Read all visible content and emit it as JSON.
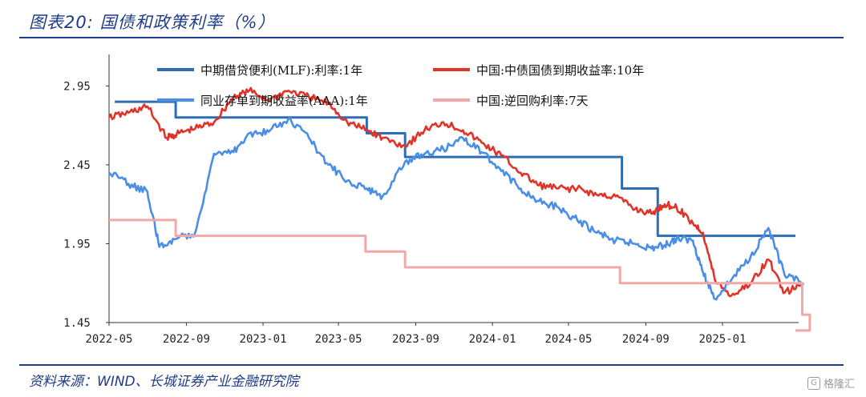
{
  "title": "图表20:  国债和政策利率（%）",
  "source": "资料来源：WIND、长城证券产业金融研究院",
  "watermark": "格隆汇",
  "chart_data": {
    "type": "line",
    "title": "",
    "xlabel": "",
    "ylabel": "",
    "x_ticks": [
      "2022-05",
      "2022-09",
      "2023-01",
      "2023-05",
      "2023-09",
      "2024-01",
      "2024-05",
      "2024-09",
      "2025-01"
    ],
    "y_ticks": [
      "2.95",
      "2.45",
      "1.95",
      "1.45"
    ],
    "ylim": [
      1.45,
      3.15
    ],
    "xlim": [
      "2022-05-01",
      "2025-05-20"
    ],
    "grid": false,
    "legend_position": "top",
    "series": [
      {
        "name": "中期借贷便利(MLF):利率:1年",
        "color": "#2e6db4",
        "x": [
          "2022-05-10",
          "2022-08-15",
          "2023-06-15",
          "2023-08-15",
          "2024-07-25",
          "2024-09-20",
          "2025-04-20"
        ],
        "values": [
          2.85,
          2.75,
          2.65,
          2.5,
          2.3,
          2.0,
          2.0
        ]
      },
      {
        "name": "中国:中债国债到期收益率:10年",
        "color": "#e0342a",
        "x": [
          "2022-05-01",
          "2022-06-01",
          "2022-07-01",
          "2022-08-01",
          "2022-08-20",
          "2022-09-15",
          "2022-10-15",
          "2022-11-15",
          "2022-12-10",
          "2023-01-10",
          "2023-02-10",
          "2023-03-15",
          "2023-04-15",
          "2023-05-15",
          "2023-06-15",
          "2023-07-10",
          "2023-08-15",
          "2023-09-15",
          "2023-10-15",
          "2023-11-15",
          "2023-12-15",
          "2024-01-15",
          "2024-02-15",
          "2024-03-15",
          "2024-04-15",
          "2024-05-15",
          "2024-06-15",
          "2024-07-15",
          "2024-08-15",
          "2024-09-10",
          "2024-10-01",
          "2024-10-20",
          "2024-11-15",
          "2024-12-01",
          "2024-12-20",
          "2025-01-15",
          "2025-02-15",
          "2025-03-15",
          "2025-04-10",
          "2025-05-10"
        ],
        "values": [
          2.75,
          2.78,
          2.82,
          2.62,
          2.65,
          2.68,
          2.72,
          2.88,
          2.92,
          2.86,
          2.92,
          2.88,
          2.84,
          2.72,
          2.67,
          2.62,
          2.57,
          2.67,
          2.72,
          2.67,
          2.59,
          2.51,
          2.4,
          2.32,
          2.3,
          2.3,
          2.26,
          2.25,
          2.17,
          2.14,
          2.2,
          2.18,
          2.08,
          2.02,
          1.72,
          1.62,
          1.7,
          1.85,
          1.64,
          1.69
        ]
      },
      {
        "name": "同业存单到期收益率(AAA):1年",
        "color": "#4a8ee6",
        "x": [
          "2022-05-01",
          "2022-06-01",
          "2022-07-01",
          "2022-07-20",
          "2022-08-15",
          "2022-09-15",
          "2022-10-15",
          "2022-11-15",
          "2022-12-10",
          "2023-01-10",
          "2023-02-10",
          "2023-03-15",
          "2023-04-15",
          "2023-05-15",
          "2023-06-15",
          "2023-07-10",
          "2023-08-15",
          "2023-09-15",
          "2023-10-15",
          "2023-11-15",
          "2023-12-15",
          "2024-01-15",
          "2024-02-15",
          "2024-03-15",
          "2024-04-15",
          "2024-05-15",
          "2024-06-15",
          "2024-07-15",
          "2024-08-15",
          "2024-09-10",
          "2024-10-01",
          "2024-10-20",
          "2024-11-15",
          "2024-12-01",
          "2024-12-20",
          "2025-01-15",
          "2025-02-15",
          "2025-03-15",
          "2025-04-10",
          "2025-05-10"
        ],
        "values": [
          2.4,
          2.33,
          2.28,
          1.93,
          1.98,
          2.02,
          2.52,
          2.53,
          2.65,
          2.66,
          2.74,
          2.62,
          2.45,
          2.35,
          2.3,
          2.25,
          2.47,
          2.52,
          2.55,
          2.62,
          2.53,
          2.41,
          2.3,
          2.22,
          2.18,
          2.1,
          2.02,
          1.97,
          1.95,
          1.92,
          1.94,
          1.98,
          1.97,
          1.77,
          1.6,
          1.72,
          1.87,
          2.05,
          1.75,
          1.7
        ]
      },
      {
        "name": "中国:逆回购利率:7天",
        "color": "#f2a8a8",
        "x": [
          "2022-05-01",
          "2022-08-15",
          "2023-06-13",
          "2023-08-15",
          "2024-07-22",
          "2025-05-08",
          "2025-05-20"
        ],
        "values": [
          2.1,
          2.0,
          1.9,
          1.8,
          1.7,
          1.5,
          1.4
        ]
      }
    ]
  }
}
